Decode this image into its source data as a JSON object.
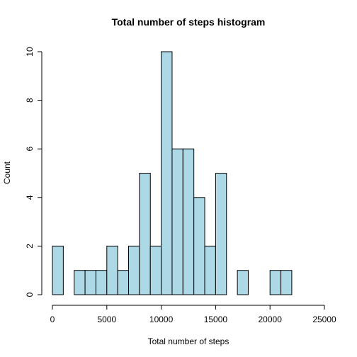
{
  "chart_data": {
    "type": "bar",
    "title": "Total number of steps histogram",
    "xlabel": "Total number of steps",
    "ylabel": "Count",
    "bin_width": 1000,
    "bin_starts": [
      0,
      1000,
      2000,
      3000,
      4000,
      5000,
      6000,
      7000,
      8000,
      9000,
      10000,
      11000,
      12000,
      13000,
      14000,
      15000,
      16000,
      17000,
      18000,
      19000,
      20000,
      21000
    ],
    "values": [
      2,
      0,
      1,
      1,
      1,
      2,
      1,
      2,
      5,
      2,
      10,
      6,
      6,
      4,
      2,
      5,
      0,
      1,
      0,
      0,
      1,
      1
    ],
    "xlim": [
      0,
      25000
    ],
    "ylim": [
      0,
      10
    ],
    "xticks": [
      "0",
      "5000",
      "10000",
      "15000",
      "20000",
      "25000"
    ],
    "yticks": [
      "0",
      "2",
      "4",
      "6",
      "8",
      "10"
    ],
    "bar_color": "#ADD8E6",
    "grid": false
  }
}
